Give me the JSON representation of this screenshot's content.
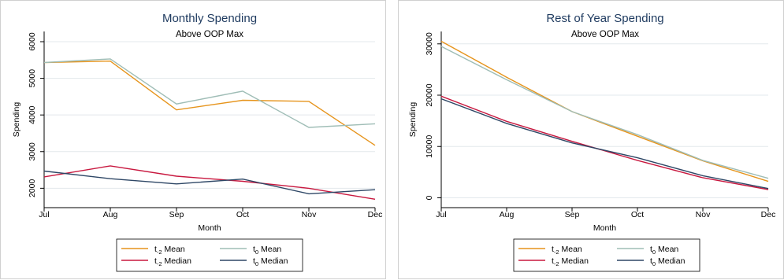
{
  "colors": {
    "t_minus2_mean": "#e6941c",
    "t0_mean": "#9fbdb6",
    "t_minus2_median": "#c8183f",
    "t0_median": "#2e4766",
    "grid": "#e3e8ec",
    "frame": "#d0d0d0"
  },
  "legend_entries": [
    {
      "key": "t_minus2_mean",
      "base": "t",
      "sub": "-2",
      "label": "Mean"
    },
    {
      "key": "t0_mean",
      "base": "t",
      "sub": "0",
      "label": "Mean"
    },
    {
      "key": "t_minus2_median",
      "base": "t",
      "sub": "-2",
      "label": "Median"
    },
    {
      "key": "t0_median",
      "base": "t",
      "sub": "0",
      "label": "Median"
    }
  ],
  "chart_data": [
    {
      "type": "line",
      "title": "Monthly Spending",
      "subtitle": "Above OOP Max",
      "xlabel": "Month",
      "ylabel": "Spending",
      "categories": [
        "Jul",
        "Aug",
        "Sep",
        "Oct",
        "Nov",
        "Dec"
      ],
      "ylim": [
        1600,
        6150
      ],
      "yticks": [
        2000,
        3000,
        4000,
        5000,
        6000
      ],
      "grid": true,
      "legend_position": "bottom",
      "series": [
        {
          "key": "t_minus2_mean",
          "values": [
            5430,
            5470,
            4140,
            4400,
            4370,
            3170
          ]
        },
        {
          "key": "t0_mean",
          "values": [
            5430,
            5530,
            4300,
            4650,
            3660,
            3760
          ]
        },
        {
          "key": "t_minus2_median",
          "values": [
            2310,
            2610,
            2330,
            2190,
            2000,
            1700
          ]
        },
        {
          "key": "t0_median",
          "values": [
            2470,
            2260,
            2120,
            2250,
            1850,
            1960
          ]
        }
      ]
    },
    {
      "type": "line",
      "title": "Rest of Year Spending",
      "subtitle": "Above OOP Max",
      "xlabel": "Month",
      "ylabel": "Spending",
      "categories": [
        "Jul",
        "Aug",
        "Sep",
        "Oct",
        "Nov",
        "Dec"
      ],
      "ylim": [
        -1000,
        31500
      ],
      "yticks": [
        0,
        10000,
        20000,
        30000
      ],
      "grid": true,
      "legend_position": "bottom",
      "series": [
        {
          "key": "t_minus2_mean",
          "values": [
            30500,
            23500,
            16800,
            12000,
            7200,
            3200
          ]
        },
        {
          "key": "t0_mean",
          "values": [
            29500,
            23000,
            16800,
            12300,
            7300,
            3800
          ]
        },
        {
          "key": "t_minus2_median",
          "values": [
            19800,
            14900,
            11000,
            7300,
            3900,
            1600
          ]
        },
        {
          "key": "t0_median",
          "values": [
            19300,
            14500,
            10700,
            7800,
            4300,
            1800
          ]
        }
      ]
    }
  ]
}
